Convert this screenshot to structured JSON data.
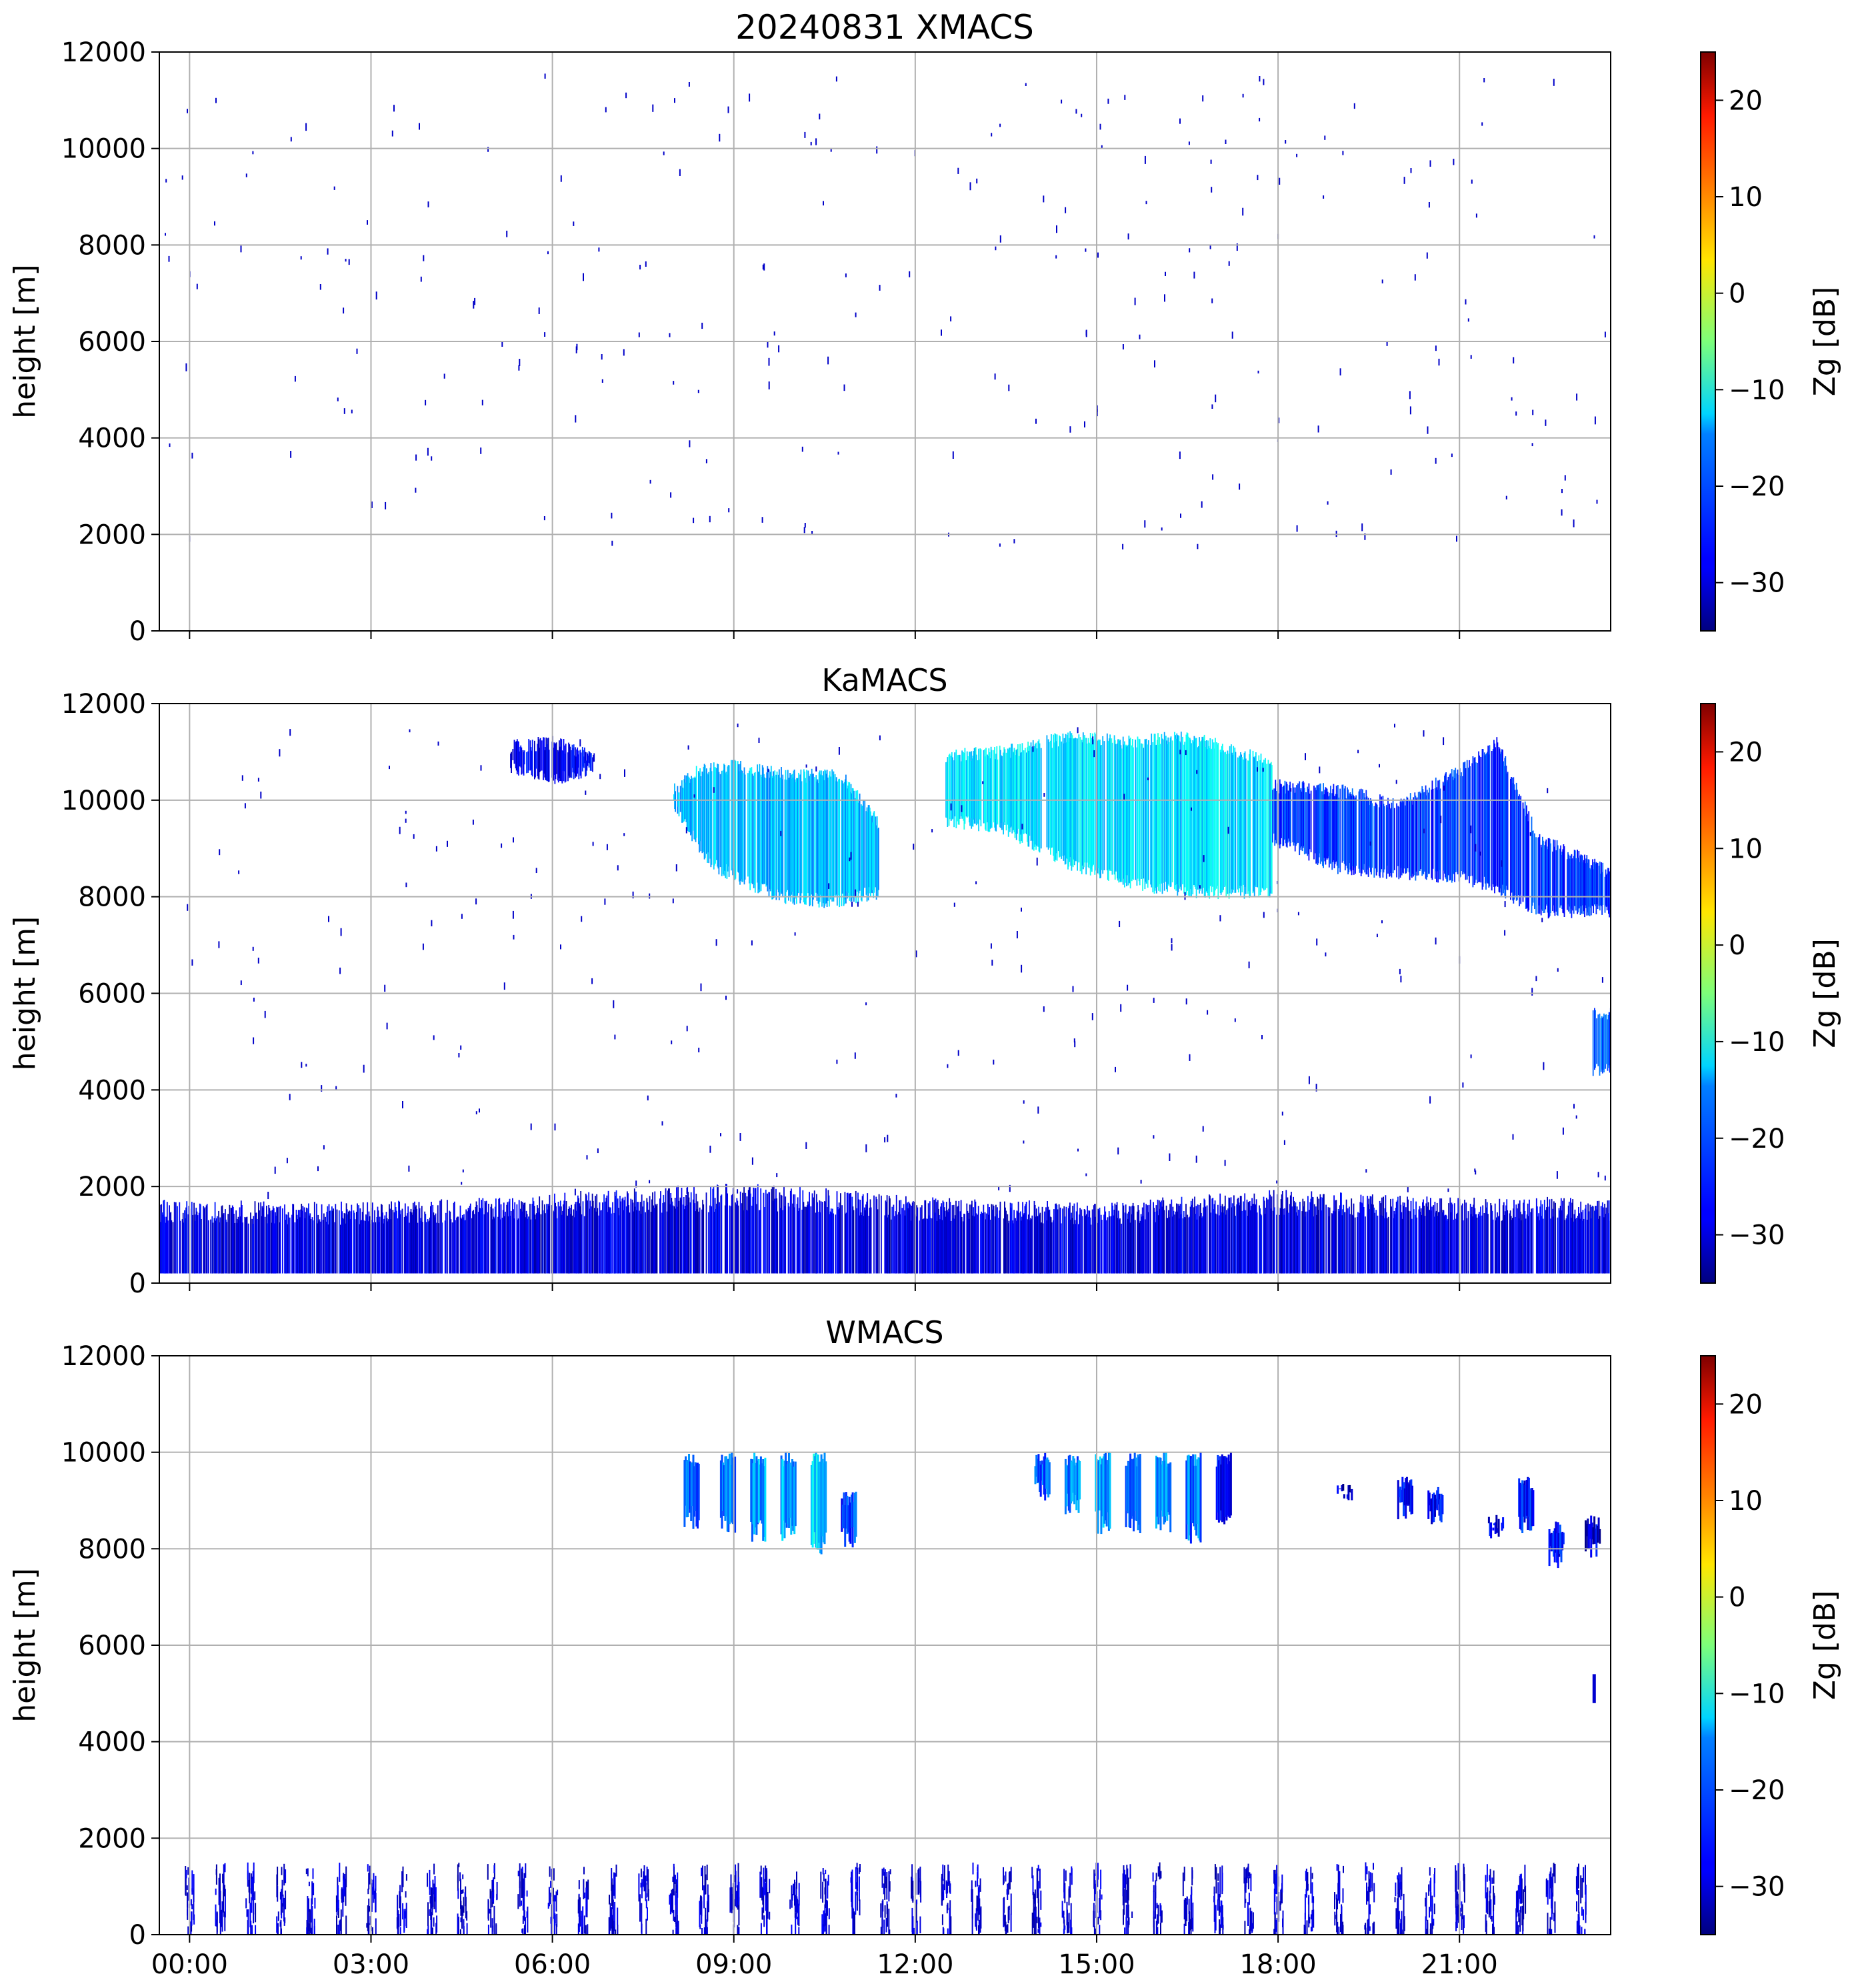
{
  "chart_data": [
    {
      "type": "heatmap",
      "title": "20240831 XMACS",
      "ylabel": "height [m]",
      "ylim": [
        0,
        12000
      ],
      "yticks": [
        0,
        2000,
        4000,
        6000,
        8000,
        10000,
        12000
      ],
      "xlim": [
        -0.5,
        23.5
      ],
      "xticks_hours": [
        0,
        3,
        6,
        9,
        12,
        15,
        18,
        21
      ],
      "xtick_labels": [
        "00:00",
        "03:00",
        "06:00",
        "09:00",
        "12:00",
        "15:00",
        "18:00",
        "21:00"
      ],
      "show_xtick_labels": false,
      "grid": true,
      "colorbar": {
        "label": "Zg [dB]",
        "vmin": -35,
        "vmax": 25,
        "ticks": [
          -30,
          -20,
          -10,
          0,
          10,
          20
        ],
        "tick_labels": [
          "−30",
          "−20",
          "−10",
          "0",
          "10",
          "20"
        ],
        "colormap": "jet"
      },
      "layers": []
    },
    {
      "type": "heatmap",
      "title": "KaMACS",
      "ylabel": "height [m]",
      "ylim": [
        0,
        12000
      ],
      "yticks": [
        0,
        2000,
        4000,
        6000,
        8000,
        10000,
        12000
      ],
      "xlim": [
        -0.5,
        23.5
      ],
      "xticks_hours": [
        0,
        3,
        6,
        9,
        12,
        15,
        18,
        21
      ],
      "xtick_labels": [
        "00:00",
        "03:00",
        "06:00",
        "09:00",
        "12:00",
        "15:00",
        "18:00",
        "21:00"
      ],
      "show_xtick_labels": false,
      "grid": true,
      "colorbar": {
        "label": "Zg [dB]",
        "vmin": -35,
        "vmax": 25,
        "ticks": [
          -30,
          -20,
          -10,
          0,
          10,
          20
        ],
        "tick_labels": [
          "−30",
          "−20",
          "−10",
          "0",
          "10",
          "20"
        ],
        "colormap": "jet"
      },
      "layers": [
        {
          "name": "boundary-layer-echo",
          "t0": -0.5,
          "t1": 23.5,
          "h_bottom": 200,
          "top_profile": [
            [
              -0.5,
              1650
            ],
            [
              3,
              1600
            ],
            [
              5,
              1700
            ],
            [
              7.5,
              1900
            ],
            [
              9.5,
              2000
            ],
            [
              12,
              1700
            ],
            [
              15,
              1600
            ],
            [
              18,
              1850
            ],
            [
              21,
              1700
            ],
            [
              23.5,
              1700
            ]
          ],
          "z": -31
        },
        {
          "name": "cirrus-morning",
          "t0": 5.3,
          "t1": 6.7,
          "top_profile": [
            [
              5.3,
              11100
            ],
            [
              6,
              11200
            ],
            [
              6.7,
              10900
            ]
          ],
          "bottom_profile": [
            [
              5.3,
              10700
            ],
            [
              6,
              10400
            ],
            [
              6.7,
              10700
            ]
          ],
          "z": -30
        },
        {
          "name": "cirrus-0830-1115",
          "t0": 8.0,
          "t1": 11.4,
          "top_profile": [
            [
              8.0,
              10200
            ],
            [
              8.4,
              10600
            ],
            [
              9.0,
              10700
            ],
            [
              10.0,
              10500
            ],
            [
              10.8,
              10500
            ],
            [
              11.4,
              9500
            ]
          ],
          "bottom_profile": [
            [
              8.0,
              9900
            ],
            [
              8.6,
              8700
            ],
            [
              9.2,
              8300
            ],
            [
              9.8,
              8000
            ],
            [
              10.6,
              7900
            ],
            [
              11.4,
              8100
            ]
          ],
          "z": -18
        },
        {
          "name": "cirrus-1230-1800",
          "t0": 12.5,
          "t1": 17.9,
          "top_profile": [
            [
              12.5,
              10900
            ],
            [
              13.5,
              11000
            ],
            [
              14.5,
              11300
            ],
            [
              15.5,
              11200
            ],
            [
              16.5,
              11300
            ],
            [
              17.9,
              10800
            ]
          ],
          "bottom_profile": [
            [
              12.5,
              9600
            ],
            [
              13.5,
              9400
            ],
            [
              14.5,
              8700
            ],
            [
              15.5,
              8300
            ],
            [
              16.5,
              8100
            ],
            [
              17.9,
              8100
            ]
          ],
          "z": -16
        },
        {
          "name": "cirrus-1800-2330",
          "t0": 17.9,
          "t1": 23.5,
          "top_profile": [
            [
              17.9,
              10300
            ],
            [
              19.0,
              10200
            ],
            [
              20.0,
              9900
            ],
            [
              21.0,
              10600
            ],
            [
              21.6,
              11200
            ],
            [
              22.3,
              9200
            ],
            [
              23.5,
              8500
            ]
          ],
          "bottom_profile": [
            [
              17.9,
              9200
            ],
            [
              19.0,
              8600
            ],
            [
              20.0,
              8500
            ],
            [
              21.0,
              8400
            ],
            [
              21.6,
              8200
            ],
            [
              22.3,
              7700
            ],
            [
              23.5,
              7700
            ]
          ],
          "z": -26
        },
        {
          "name": "mid-level-cloud",
          "t0": 23.2,
          "t1": 23.5,
          "top_profile": [
            [
              23.2,
              5600
            ],
            [
              23.5,
              5600
            ]
          ],
          "bottom_profile": [
            [
              23.2,
              4400
            ],
            [
              23.5,
              4400
            ]
          ],
          "z": -24
        }
      ]
    },
    {
      "type": "heatmap",
      "title": "WMACS",
      "ylabel": "height [m]",
      "ylim": [
        0,
        12000
      ],
      "yticks": [
        0,
        2000,
        4000,
        6000,
        8000,
        10000,
        12000
      ],
      "xlim": [
        -0.5,
        23.5
      ],
      "xticks_hours": [
        0,
        3,
        6,
        9,
        12,
        15,
        18,
        21
      ],
      "xtick_labels": [
        "00:00",
        "03:00",
        "06:00",
        "09:00",
        "12:00",
        "15:00",
        "18:00",
        "21:00"
      ],
      "show_xtick_labels": true,
      "grid": true,
      "colorbar": {
        "label": "Zg [dB]",
        "vmin": -35,
        "vmax": 25,
        "ticks": [
          -30,
          -20,
          -10,
          0,
          10,
          20
        ],
        "tick_labels": [
          "−30",
          "−20",
          "−10",
          "0",
          "10",
          "20"
        ],
        "colormap": "jet"
      },
      "bursts": [
        {
          "t": 8.3,
          "top": 10000,
          "bottom": 8400,
          "z": -22
        },
        {
          "t": 8.9,
          "top": 10000,
          "bottom": 8300,
          "z": -20
        },
        {
          "t": 9.4,
          "top": 10000,
          "bottom": 8100,
          "z": -19
        },
        {
          "t": 9.9,
          "top": 10000,
          "bottom": 8150,
          "z": -18
        },
        {
          "t": 10.4,
          "top": 10000,
          "bottom": 7850,
          "z": -15
        },
        {
          "t": 10.9,
          "top": 9200,
          "bottom": 7950,
          "z": -24
        },
        {
          "t": 14.1,
          "top": 10000,
          "bottom": 9000,
          "z": -22
        },
        {
          "t": 14.6,
          "top": 10000,
          "bottom": 8700,
          "z": -20
        },
        {
          "t": 15.1,
          "top": 10000,
          "bottom": 8300,
          "z": -18
        },
        {
          "t": 15.6,
          "top": 10000,
          "bottom": 8300,
          "z": -20
        },
        {
          "t": 16.1,
          "top": 10000,
          "bottom": 8300,
          "z": -19
        },
        {
          "t": 16.6,
          "top": 10000,
          "bottom": 8100,
          "z": -21
        },
        {
          "t": 17.1,
          "top": 10000,
          "bottom": 8500,
          "z": -28
        },
        {
          "t": 19.1,
          "top": 9400,
          "bottom": 9000,
          "z": -30
        },
        {
          "t": 20.1,
          "top": 9500,
          "bottom": 8600,
          "z": -28
        },
        {
          "t": 20.6,
          "top": 9300,
          "bottom": 8500,
          "z": -28
        },
        {
          "t": 21.6,
          "top": 8700,
          "bottom": 8200,
          "z": -28
        },
        {
          "t": 22.1,
          "top": 9500,
          "bottom": 8300,
          "z": -26
        },
        {
          "t": 22.6,
          "top": 8600,
          "bottom": 7600,
          "z": -27
        },
        {
          "t": 23.2,
          "top": 8700,
          "bottom": 7800,
          "z": -30
        }
      ],
      "low_bursts_every_hours": 0.5,
      "low_burst_top_m": 1400
    }
  ]
}
